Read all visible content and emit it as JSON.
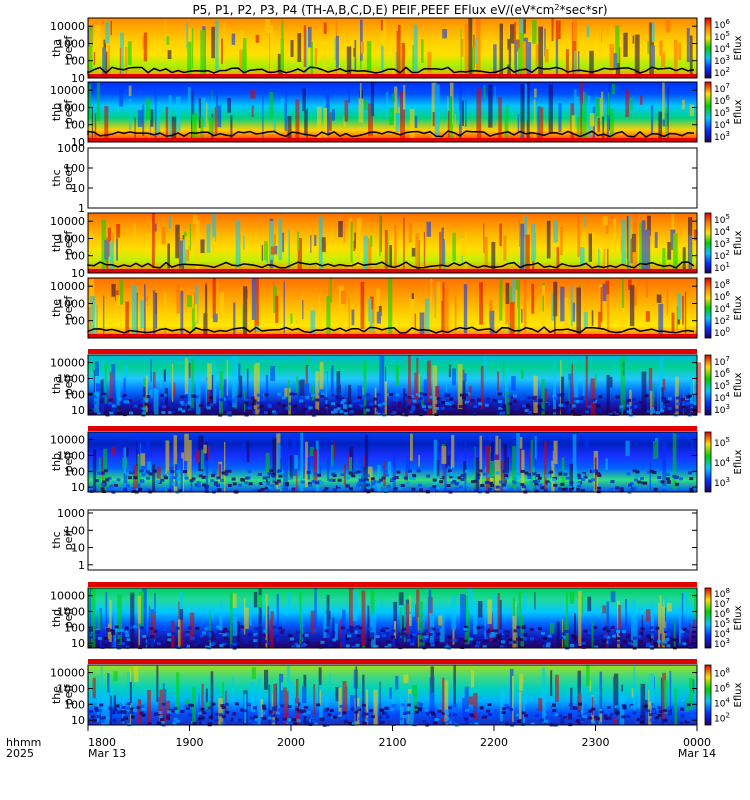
{
  "title": "P5, P1, P2, P3, P4 (TH-A,B,C,D,E) PEIF,PEEF EFlux eV/(eV*cm",
  "title_sup": "2",
  "title_end": "*sec*sr)",
  "colorbar_label": "Eflux",
  "time_axis": {
    "ticks": [
      "1800",
      "1900",
      "2000",
      "2100",
      "2200",
      "2300",
      "0000"
    ],
    "date_start": "Mar 13",
    "date_end": "Mar 14",
    "row_label_1": "hhmm",
    "row_label_2": "2025"
  },
  "chart_data": [
    {
      "type": "heatmap",
      "name": "tha peef",
      "ylabel": [
        "tha",
        "peef"
      ],
      "ylim": [
        10,
        30000
      ],
      "yticks": [
        "10",
        "100",
        "1000",
        "10000"
      ],
      "colorbar": [
        "10",
        "10",
        "10",
        "10",
        "10"
      ],
      "colorbar_exp": [
        "2",
        "3",
        "4",
        "5",
        "6"
      ],
      "palette": "full",
      "has_data": true
    },
    {
      "type": "heatmap",
      "name": "thb peef",
      "ylabel": [
        "thb",
        "peef"
      ],
      "ylim": [
        10,
        30000
      ],
      "yticks": [
        "10",
        "100",
        "1000",
        "10000"
      ],
      "colorbar": [
        "10",
        "10",
        "10",
        "10",
        "10"
      ],
      "colorbar_exp": [
        "3",
        "4",
        "5",
        "6",
        "7"
      ],
      "palette": "thb_peef",
      "has_data": true
    },
    {
      "type": "heatmap",
      "name": "thc peef",
      "ylabel": [
        "thc",
        "peef"
      ],
      "ylim": [
        1,
        1000
      ],
      "yticks": [
        "1",
        "10",
        "100",
        "1000"
      ],
      "colorbar": [],
      "colorbar_exp": [],
      "palette": "none",
      "has_data": false
    },
    {
      "type": "heatmap",
      "name": "thd peef",
      "ylabel": [
        "thd",
        "peef"
      ],
      "ylim": [
        10,
        30000
      ],
      "yticks": [
        "10",
        "100",
        "1000",
        "10000"
      ],
      "colorbar": [
        "10",
        "10",
        "10",
        "10",
        "10"
      ],
      "colorbar_exp": [
        "1",
        "2",
        "3",
        "4",
        "5"
      ],
      "palette": "full",
      "has_data": true
    },
    {
      "type": "heatmap",
      "name": "the peef",
      "ylabel": [
        "the",
        "peef"
      ],
      "ylim": [
        10,
        30000
      ],
      "yticks": [
        "100",
        "1000",
        "10000"
      ],
      "colorbar": [
        "10",
        "10",
        "10",
        "10",
        "10"
      ],
      "colorbar_exp": [
        "0",
        "2",
        "4",
        "6",
        "8"
      ],
      "palette": "full",
      "has_data": true
    },
    {
      "type": "heatmap",
      "name": "tha peif",
      "ylabel": [
        "tha",
        "peif"
      ],
      "ylim": [
        5,
        30000
      ],
      "yticks": [
        "10",
        "100",
        "1000",
        "10000"
      ],
      "colorbar": [
        "10",
        "10",
        "10",
        "10",
        "10"
      ],
      "colorbar_exp": [
        "3",
        "4",
        "5",
        "6",
        "7"
      ],
      "palette": "ion",
      "has_data": true
    },
    {
      "type": "heatmap",
      "name": "thb peif",
      "ylabel": [
        "thb",
        "peif"
      ],
      "ylim": [
        5,
        30000
      ],
      "yticks": [
        "10",
        "100",
        "1000",
        "10000"
      ],
      "colorbar": [
        "10",
        "10",
        "10"
      ],
      "colorbar_exp": [
        "3",
        "4",
        "5"
      ],
      "palette": "thb_peif",
      "has_data": true
    },
    {
      "type": "heatmap",
      "name": "thc peif",
      "ylabel": [
        "thc",
        "peif"
      ],
      "ylim": [
        0.5,
        1500
      ],
      "yticks": [
        "1",
        "10",
        "100",
        "1000"
      ],
      "colorbar": [],
      "colorbar_exp": [],
      "palette": "none",
      "has_data": false
    },
    {
      "type": "heatmap",
      "name": "thd peif",
      "ylabel": [
        "thd",
        "peif"
      ],
      "ylim": [
        5,
        30000
      ],
      "yticks": [
        "10",
        "100",
        "1000",
        "10000"
      ],
      "colorbar": [
        "10",
        "10",
        "10",
        "10",
        "10",
        "10"
      ],
      "colorbar_exp": [
        "3",
        "4",
        "5",
        "6",
        "7",
        "8"
      ],
      "palette": "ion",
      "has_data": true
    },
    {
      "type": "heatmap",
      "name": "the peif",
      "ylabel": [
        "the",
        "peif"
      ],
      "ylim": [
        5,
        30000
      ],
      "yticks": [
        "10",
        "100",
        "1000",
        "10000"
      ],
      "colorbar": [
        "10",
        "10",
        "10",
        "10"
      ],
      "colorbar_exp": [
        "2",
        "4",
        "6",
        "8"
      ],
      "palette": "ion",
      "has_data": true
    }
  ]
}
